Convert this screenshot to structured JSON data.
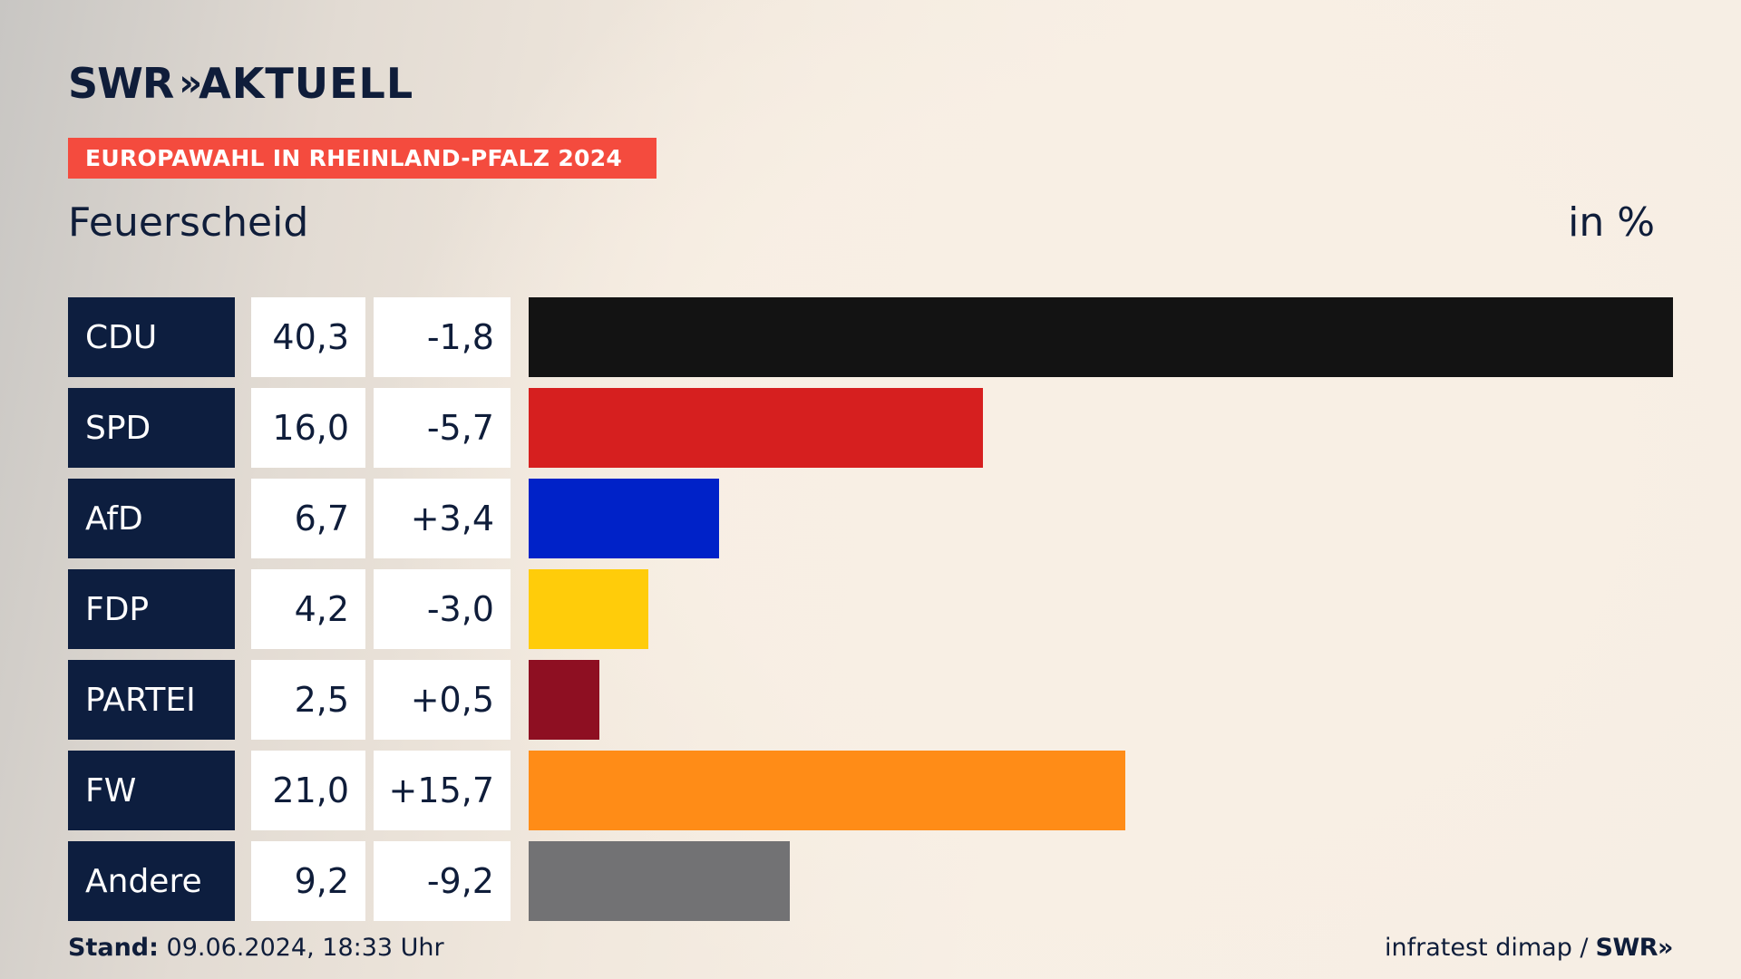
{
  "header": {
    "logo": "SWR",
    "logo_arrows": "»",
    "logo_suffix": "AKTUELL",
    "banner": "EUROPAWAHL IN RHEINLAND-PFALZ 2024",
    "place": "Feuerscheid",
    "unit": "in %"
  },
  "chart_data": {
    "type": "bar",
    "title": "EUROPAWAHL IN RHEINLAND-PFALZ 2024",
    "subtitle": "Feuerscheid",
    "unit": "in %",
    "categories": [
      "CDU",
      "SPD",
      "AfD",
      "FDP",
      "PARTEI",
      "FW",
      "Andere"
    ],
    "values": [
      40.3,
      16.0,
      6.7,
      4.2,
      2.5,
      21.0,
      9.2
    ],
    "value_labels": [
      "40,3",
      "16,0",
      "6,7",
      "4,2",
      "2,5",
      "21,0",
      "9,2"
    ],
    "differences": [
      "-1,8",
      "-5,7",
      "+3,4",
      "-3,0",
      "+0,5",
      "+15,7",
      "-9,2"
    ],
    "colors": [
      "#131313",
      "#d61f1f",
      "#0022c8",
      "#ffcc0a",
      "#8e0f22",
      "#ff8c17",
      "#727274"
    ],
    "xlim": [
      0,
      40.3
    ]
  },
  "footer": {
    "stand_label": "Stand:",
    "stand_value": "09.06.2024, 18:33 Uhr",
    "source": "infratest dimap /",
    "source_logo": "SWR»"
  }
}
